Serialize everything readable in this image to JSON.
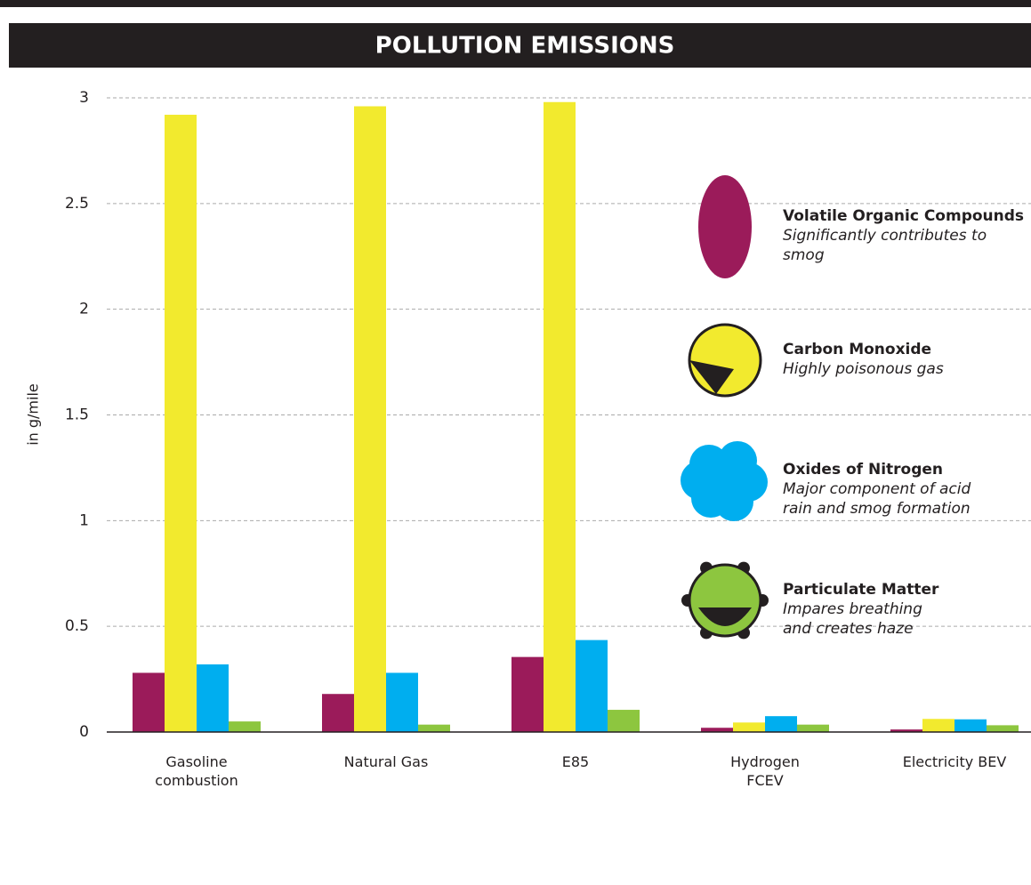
{
  "chart_data": {
    "type": "bar",
    "title": "POLLUTION EMISSIONS",
    "y_label": "in g/mile",
    "categories": [
      "Gasoline combustion",
      "Natural Gas",
      "E85",
      "Hydrogen FCEV",
      "Electricity BEV"
    ],
    "series": [
      {
        "name": "Volatile Organic Compounds",
        "description": [
          "Significantly contributes to",
          "smog"
        ],
        "color": "#9b1b5a",
        "values": [
          0.28,
          0.18,
          0.355,
          0.02,
          0.012
        ]
      },
      {
        "name": "Carbon Monoxide",
        "description": [
          "Highly poisonous gas"
        ],
        "color": "#f2ea2e",
        "values": [
          2.92,
          2.96,
          2.98,
          0.045,
          0.062
        ]
      },
      {
        "name": "Oxides of Nitrogen",
        "description": [
          "Major component of acid",
          "rain and smog formation"
        ],
        "color": "#00aeef",
        "values": [
          0.32,
          0.28,
          0.435,
          0.075,
          0.06
        ]
      },
      {
        "name": "Particulate Matter",
        "description": [
          "Impares breathing",
          "and creates haze"
        ],
        "color": "#8dc63f",
        "values": [
          0.05,
          0.035,
          0.105,
          0.035,
          0.032
        ]
      }
    ],
    "ylim": [
      0,
      3
    ],
    "yticks": [
      0,
      0.5,
      1,
      1.5,
      2,
      2.5,
      3
    ],
    "grid": true
  }
}
